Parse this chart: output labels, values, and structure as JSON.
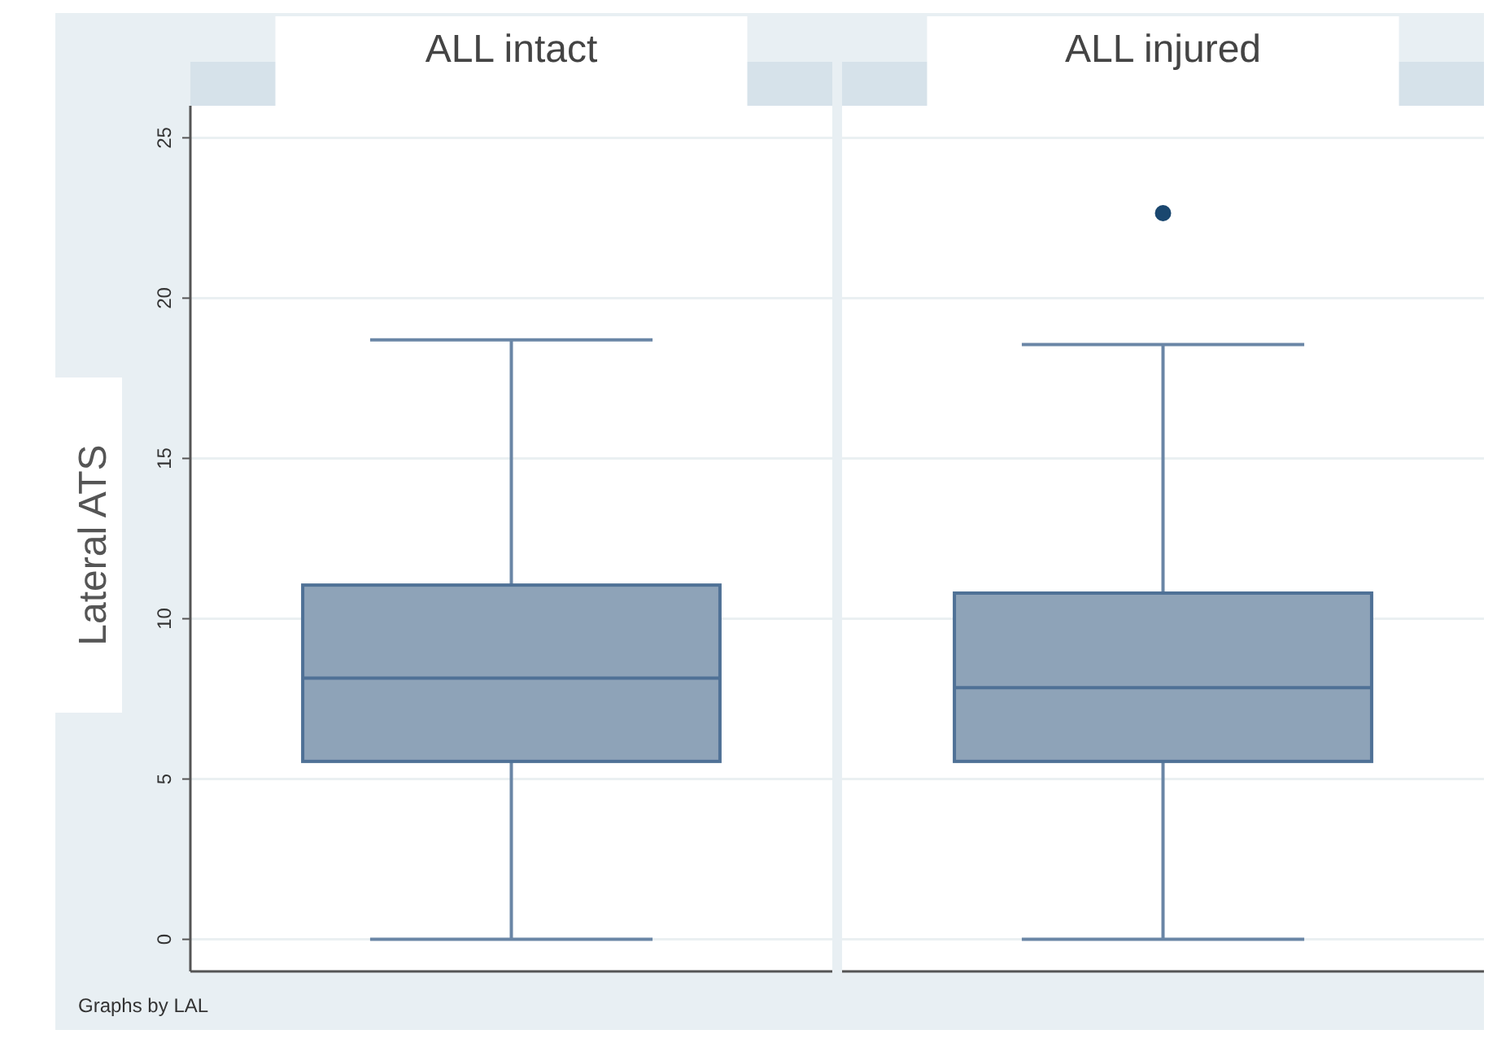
{
  "chart_data": {
    "type": "box",
    "ylabel": "Lateral ATS",
    "categories": [
      "ALL intact",
      "ALL injured"
    ],
    "color": "#8ea3b8",
    "ylim": [
      -1,
      26
    ],
    "yticks": [
      0,
      5,
      10,
      15,
      20,
      25
    ],
    "grid": "y",
    "annotations": [
      "Graphs by LAL"
    ],
    "boxes": [
      {
        "low": 0,
        "q1": 5.55,
        "median": 8.15,
        "q3": 11.05,
        "high": 18.7
      },
      {
        "low": 0,
        "q1": 5.55,
        "median": 7.85,
        "q3": 10.8,
        "high": 18.55,
        "outliers": [
          22.65
        ]
      }
    ]
  }
}
